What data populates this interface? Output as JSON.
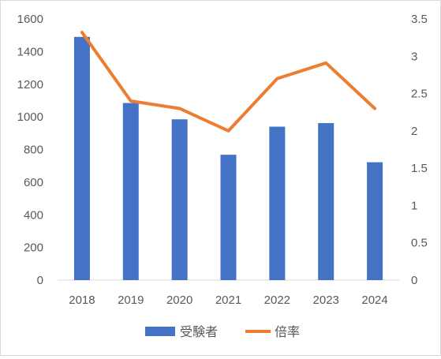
{
  "chart_data": {
    "type": "bar",
    "categories": [
      "2018",
      "2019",
      "2020",
      "2021",
      "2022",
      "2023",
      "2024"
    ],
    "series": [
      {
        "name": "受験者",
        "type": "bar",
        "axis": "left",
        "color": "#4472c4",
        "values": [
          1490,
          1085,
          985,
          768,
          940,
          962,
          722
        ]
      },
      {
        "name": "倍率",
        "type": "line",
        "axis": "right",
        "color": "#ed7d31",
        "values": [
          3.32,
          2.4,
          2.3,
          2.0,
          2.7,
          2.91,
          2.3
        ]
      }
    ],
    "y_left": {
      "min": 0,
      "max": 1600,
      "ticks": [
        "0",
        "200",
        "400",
        "600",
        "800",
        "1000",
        "1200",
        "1400",
        "1600"
      ]
    },
    "y_right": {
      "min": 0,
      "max": 3.5,
      "ticks": [
        "0",
        "0.5",
        "1",
        "1.5",
        "2",
        "2.5",
        "3",
        "3.5"
      ]
    },
    "grid": false,
    "legend_position": "bottom"
  }
}
